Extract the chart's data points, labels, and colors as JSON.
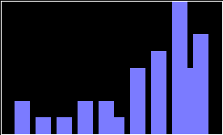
{
  "scores": [
    3,
    5,
    7,
    9,
    11,
    12,
    14,
    16,
    18,
    19,
    20
  ],
  "freqs": [
    2,
    1,
    1,
    2,
    2,
    1,
    4,
    5,
    8,
    4,
    6
  ],
  "bar_color": "#7b7bff",
  "edge_color": "#7b7bff",
  "bg_color": "#000000",
  "plot_bg": "#000000",
  "ylim": [
    0,
    8
  ],
  "xlim": [
    1,
    22
  ]
}
